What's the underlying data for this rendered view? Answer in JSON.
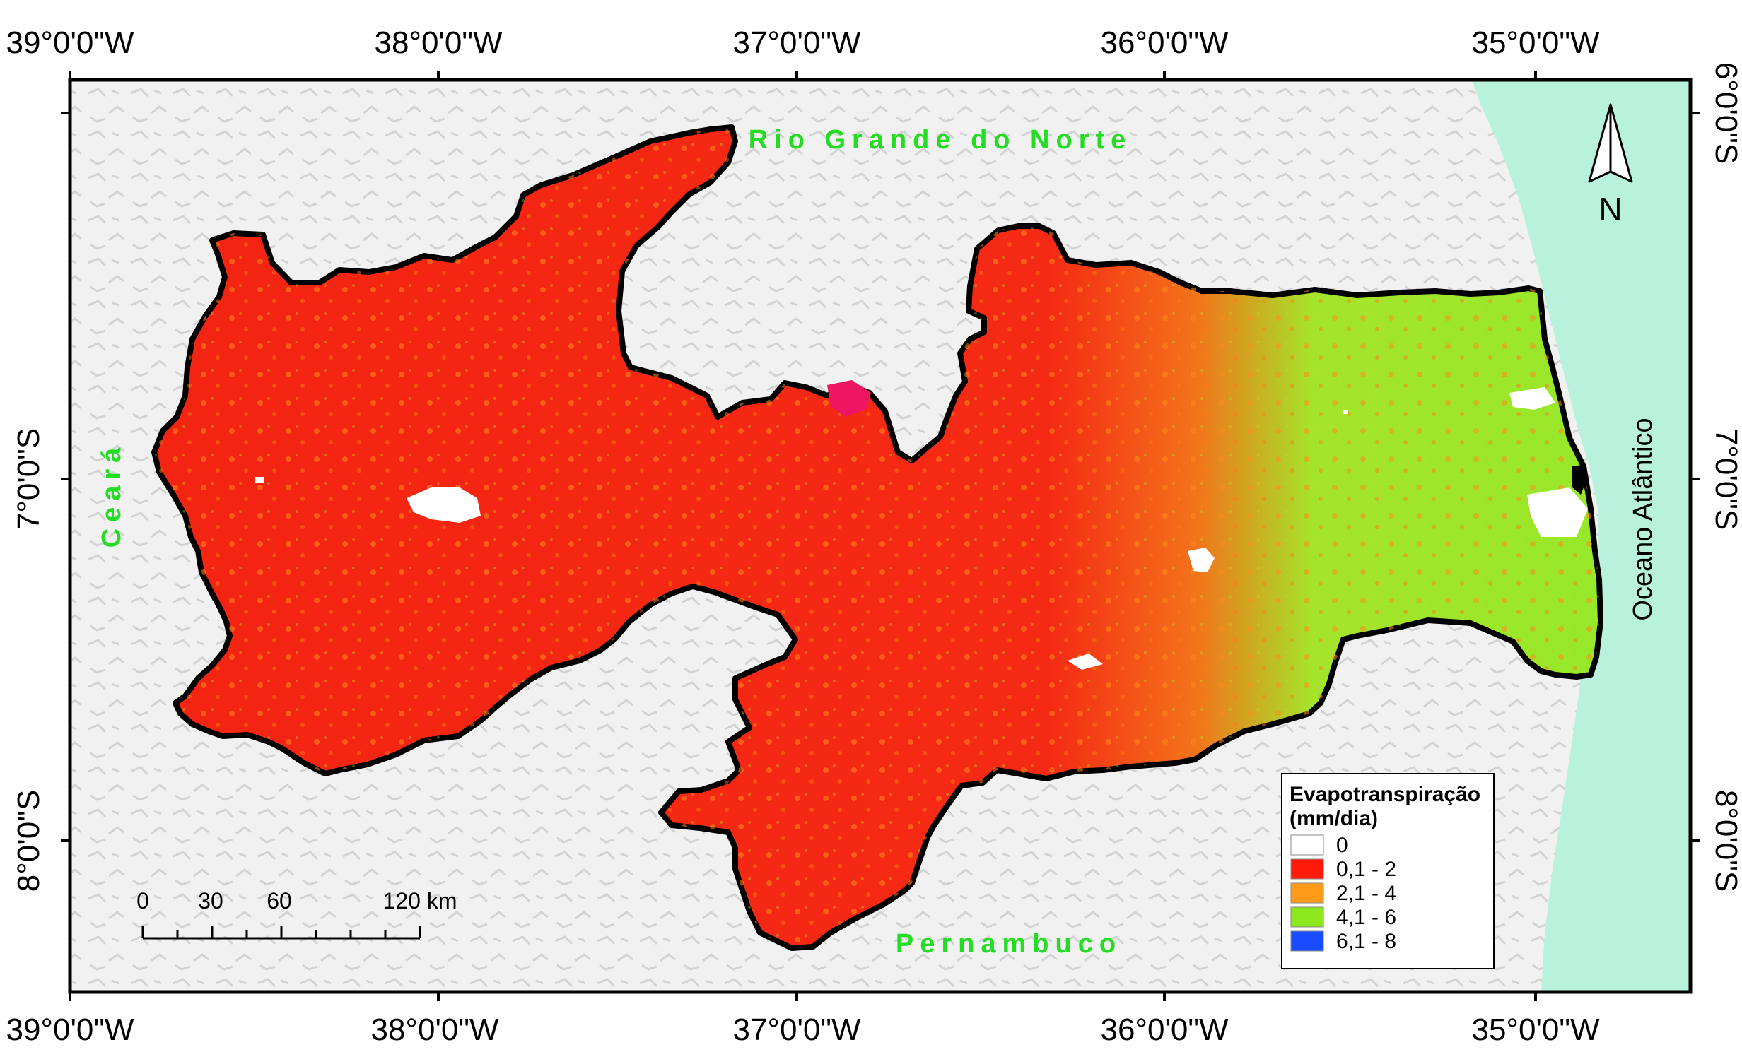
{
  "graticule": {
    "lon_top": [
      "39°0'0\"W",
      "38°0'0\"W",
      "37°0'0\"W",
      "36°0'0\"W",
      "35°0'0\"W"
    ],
    "lon_bottom": [
      "39°0'0\"W",
      "38°0'0\"W",
      "37°0'0\"W",
      "36°0'0\"W",
      "35°0'0\"W"
    ],
    "lat_left": [
      "7°0'0\"S",
      "8°0'0\"S"
    ],
    "lat_right": [
      "6°0'0\"S",
      "7°0'0\"S",
      "8°0'0\"S"
    ]
  },
  "places": {
    "north": "Rio Grande do Norte",
    "west": "Ceará",
    "south": "Pernambuco",
    "ocean": "Oceano Atlântico"
  },
  "north_arrow": {
    "label": "N"
  },
  "scale_bar": {
    "labels": [
      "0",
      "30",
      "60",
      "120 km"
    ]
  },
  "legend": {
    "title_line1": "Evapotranspiração",
    "title_line2": "(mm/dia)",
    "items": [
      {
        "label": "0",
        "color": "#ffffff"
      },
      {
        "label": "0,1 - 2",
        "color": "#ff1a0a"
      },
      {
        "label": "2,1 - 4",
        "color": "#ff9b1a"
      },
      {
        "label": "4,1 - 6",
        "color": "#8ee81e"
      },
      {
        "label": "6,1 - 8",
        "color": "#1a4cff"
      }
    ]
  },
  "colors": {
    "ocean": "#b8f2dc",
    "relief": "#ececec",
    "state_red": "#f32412",
    "state_green": "#9be82a",
    "state_orange": "#f57d1a",
    "place_label": "#22dd22",
    "border": "#000000"
  }
}
